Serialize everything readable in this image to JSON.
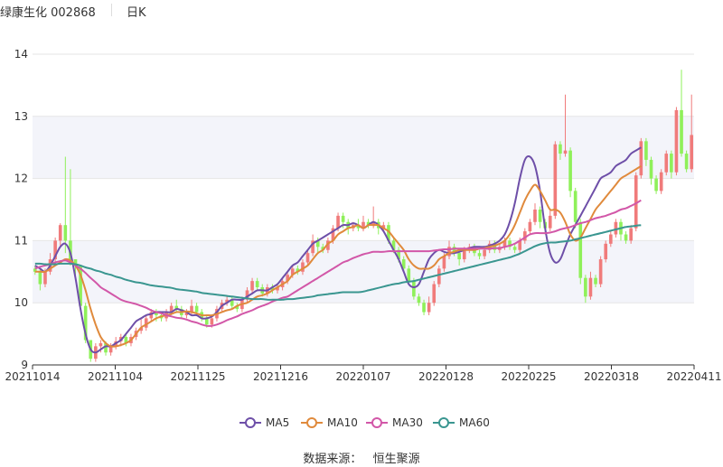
{
  "header": {
    "stock": "绿康生化 002868",
    "period": "日K"
  },
  "legend": [
    {
      "name": "MA5",
      "color": "#6e4fa8"
    },
    {
      "name": "MA10",
      "color": "#e08a3c"
    },
    {
      "name": "MA30",
      "color": "#d257a8"
    },
    {
      "name": "MA60",
      "color": "#3a9690"
    }
  ],
  "source": {
    "label": "数据来源：",
    "value": "恒生聚源"
  },
  "colors": {
    "up": "#f07b7b",
    "down": "#8ff05a",
    "band": "#f3f4fa",
    "grid": "#e6e6e6"
  },
  "chart_data": {
    "type": "candlestick",
    "x_tick_labels": [
      "20211014",
      "20211104",
      "20211125",
      "20211216",
      "20220107",
      "20220128",
      "20220225",
      "20220318",
      "20220411"
    ],
    "y_ticks": [
      9,
      10,
      11,
      12,
      13,
      14
    ],
    "ylim": [
      9,
      14
    ],
    "grid": true,
    "legend_position": "bottom",
    "candles": [
      [
        10.55,
        10.5,
        10.6,
        10.45
      ],
      [
        10.5,
        10.3,
        10.55,
        10.2
      ],
      [
        10.3,
        10.5,
        10.55,
        10.25
      ],
      [
        10.5,
        10.7,
        10.8,
        10.45
      ],
      [
        10.7,
        11.0,
        11.05,
        10.65
      ],
      [
        11.0,
        11.25,
        11.28,
        10.9
      ],
      [
        11.25,
        11.0,
        12.35,
        10.8
      ],
      [
        11.0,
        10.7,
        12.15,
        10.6
      ],
      [
        10.7,
        10.6,
        10.7,
        10.4
      ],
      [
        10.6,
        9.95,
        10.6,
        9.9
      ],
      [
        9.95,
        9.4,
        10.0,
        9.35
      ],
      [
        9.4,
        9.1,
        9.4,
        9.05
      ],
      [
        9.1,
        9.3,
        9.35,
        9.05
      ],
      [
        9.3,
        9.35,
        9.4,
        9.2
      ],
      [
        9.35,
        9.2,
        9.38,
        9.15
      ],
      [
        9.2,
        9.3,
        9.35,
        9.15
      ],
      [
        9.3,
        9.38,
        9.45,
        9.25
      ],
      [
        9.38,
        9.45,
        9.5,
        9.3
      ],
      [
        9.45,
        9.35,
        9.5,
        9.3
      ],
      [
        9.35,
        9.45,
        9.5,
        9.3
      ],
      [
        9.45,
        9.55,
        9.6,
        9.4
      ],
      [
        9.55,
        9.6,
        9.75,
        9.5
      ],
      [
        9.6,
        9.75,
        9.8,
        9.55
      ],
      [
        9.75,
        9.85,
        9.9,
        9.7
      ],
      [
        9.85,
        9.8,
        9.9,
        9.7
      ],
      [
        9.8,
        9.75,
        9.85,
        9.7
      ],
      [
        9.75,
        9.85,
        9.9,
        9.7
      ],
      [
        9.85,
        9.95,
        10.0,
        9.8
      ],
      [
        9.95,
        9.9,
        10.05,
        9.85
      ],
      [
        9.9,
        9.8,
        9.95,
        9.75
      ],
      [
        9.8,
        9.85,
        9.9,
        9.75
      ],
      [
        9.85,
        9.95,
        10.05,
        9.8
      ],
      [
        9.95,
        9.85,
        10.0,
        9.8
      ],
      [
        9.85,
        9.75,
        9.9,
        9.7
      ],
      [
        9.75,
        9.65,
        9.8,
        9.6
      ],
      [
        9.65,
        9.75,
        9.8,
        9.6
      ],
      [
        9.75,
        9.9,
        9.95,
        9.7
      ],
      [
        9.9,
        10.0,
        10.05,
        9.85
      ],
      [
        10.0,
        10.05,
        10.1,
        9.95
      ],
      [
        10.05,
        9.95,
        10.1,
        9.9
      ],
      [
        9.95,
        9.9,
        10.0,
        9.85
      ],
      [
        9.9,
        10.05,
        10.1,
        9.85
      ],
      [
        10.05,
        10.2,
        10.25,
        10.0
      ],
      [
        10.2,
        10.35,
        10.4,
        10.15
      ],
      [
        10.35,
        10.25,
        10.4,
        10.2
      ],
      [
        10.25,
        10.15,
        10.3,
        10.1
      ],
      [
        10.15,
        10.25,
        10.3,
        10.1
      ],
      [
        10.25,
        10.2,
        10.3,
        10.15
      ],
      [
        10.2,
        10.25,
        10.3,
        10.15
      ],
      [
        10.25,
        10.35,
        10.4,
        10.2
      ],
      [
        10.35,
        10.45,
        10.5,
        10.3
      ],
      [
        10.45,
        10.55,
        10.6,
        10.4
      ],
      [
        10.55,
        10.5,
        10.6,
        10.45
      ],
      [
        10.5,
        10.65,
        10.7,
        10.45
      ],
      [
        10.65,
        10.8,
        10.85,
        10.6
      ],
      [
        10.8,
        11.0,
        11.1,
        10.75
      ],
      [
        11.0,
        10.9,
        11.05,
        10.8
      ],
      [
        10.9,
        10.85,
        10.95,
        10.8
      ],
      [
        10.85,
        11.0,
        11.05,
        10.8
      ],
      [
        11.0,
        11.2,
        11.25,
        10.95
      ],
      [
        11.2,
        11.4,
        11.45,
        11.15
      ],
      [
        11.4,
        11.3,
        11.45,
        11.2
      ],
      [
        11.3,
        11.2,
        11.35,
        11.1
      ],
      [
        11.2,
        11.25,
        11.3,
        11.15
      ],
      [
        11.25,
        11.2,
        11.35,
        11.15
      ],
      [
        11.2,
        11.3,
        11.4,
        11.15
      ],
      [
        11.3,
        11.25,
        11.35,
        11.2
      ],
      [
        11.25,
        11.3,
        11.55,
        11.2
      ],
      [
        11.3,
        11.2,
        11.35,
        11.1
      ],
      [
        11.2,
        11.25,
        11.3,
        11.15
      ],
      [
        11.25,
        11.0,
        11.3,
        10.95
      ],
      [
        11.0,
        10.85,
        11.05,
        10.8
      ],
      [
        10.85,
        10.7,
        10.9,
        10.65
      ],
      [
        10.7,
        10.55,
        10.75,
        10.5
      ],
      [
        10.55,
        10.35,
        10.6,
        10.3
      ],
      [
        10.35,
        10.1,
        10.4,
        10.05
      ],
      [
        10.1,
        10.0,
        10.15,
        9.95
      ],
      [
        10.0,
        9.85,
        10.05,
        9.8
      ],
      [
        9.85,
        10.0,
        10.1,
        9.8
      ],
      [
        10.0,
        10.3,
        10.35,
        9.95
      ],
      [
        10.3,
        10.55,
        10.6,
        10.25
      ],
      [
        10.55,
        10.75,
        10.8,
        10.5
      ],
      [
        10.75,
        10.9,
        11.0,
        10.7
      ],
      [
        10.9,
        10.8,
        10.95,
        10.75
      ],
      [
        10.8,
        10.7,
        10.85,
        10.6
      ],
      [
        10.7,
        10.85,
        10.9,
        10.65
      ],
      [
        10.85,
        10.9,
        10.95,
        10.8
      ],
      [
        10.9,
        10.8,
        10.95,
        10.75
      ],
      [
        10.8,
        10.75,
        10.85,
        10.7
      ],
      [
        10.75,
        10.85,
        10.9,
        10.7
      ],
      [
        10.85,
        10.95,
        11.0,
        10.8
      ],
      [
        10.95,
        10.85,
        11.0,
        10.8
      ],
      [
        10.85,
        10.9,
        10.95,
        10.8
      ],
      [
        10.9,
        11.0,
        11.05,
        10.85
      ],
      [
        11.0,
        10.9,
        11.05,
        10.85
      ],
      [
        10.9,
        10.85,
        10.95,
        10.8
      ],
      [
        10.85,
        11.0,
        11.05,
        10.8
      ],
      [
        11.0,
        11.15,
        11.2,
        10.95
      ],
      [
        11.15,
        11.3,
        11.35,
        11.1
      ],
      [
        11.3,
        11.5,
        11.6,
        11.25
      ],
      [
        11.5,
        11.3,
        11.55,
        11.2
      ],
      [
        11.3,
        11.2,
        11.35,
        11.1
      ],
      [
        11.2,
        11.4,
        11.5,
        11.15
      ],
      [
        11.4,
        12.55,
        12.6,
        11.35
      ],
      [
        12.55,
        12.4,
        12.6,
        12.3
      ],
      [
        12.4,
        12.45,
        13.35,
        12.35
      ],
      [
        12.45,
        11.8,
        12.5,
        11.7
      ],
      [
        11.8,
        11.3,
        11.85,
        11.2
      ],
      [
        11.3,
        10.4,
        11.35,
        10.3
      ],
      [
        10.4,
        10.1,
        10.45,
        10.0
      ],
      [
        10.1,
        10.4,
        10.5,
        10.05
      ],
      [
        10.4,
        10.3,
        10.45,
        10.25
      ],
      [
        10.3,
        10.7,
        10.75,
        10.25
      ],
      [
        10.7,
        10.95,
        11.0,
        10.65
      ],
      [
        10.95,
        11.1,
        11.15,
        10.9
      ],
      [
        11.1,
        11.3,
        11.35,
        11.05
      ],
      [
        11.3,
        11.1,
        11.35,
        11.0
      ],
      [
        11.1,
        11.0,
        11.15,
        10.95
      ],
      [
        11.0,
        11.2,
        11.25,
        10.95
      ],
      [
        11.2,
        12.05,
        12.1,
        11.15
      ],
      [
        12.05,
        12.6,
        12.65,
        12.0
      ],
      [
        12.6,
        12.3,
        12.65,
        12.2
      ],
      [
        12.3,
        12.0,
        12.35,
        11.9
      ],
      [
        12.0,
        11.8,
        12.05,
        11.75
      ],
      [
        11.8,
        12.1,
        12.15,
        11.75
      ],
      [
        12.1,
        12.4,
        12.45,
        12.05
      ],
      [
        12.4,
        12.1,
        12.45,
        12.0
      ],
      [
        12.1,
        13.1,
        13.15,
        12.05
      ],
      [
        13.1,
        12.4,
        13.75,
        12.35
      ],
      [
        12.4,
        12.15,
        12.45,
        12.1
      ],
      [
        12.15,
        12.7,
        13.35,
        12.1
      ]
    ],
    "series": [
      {
        "name": "MA5",
        "values": [
          10.6,
          10.55,
          10.5,
          10.6,
          10.75,
          10.9,
          10.95,
          10.8,
          10.4,
          9.9,
          9.5,
          9.25,
          9.2,
          9.25,
          9.3,
          9.3,
          9.35,
          9.4,
          9.5,
          9.6,
          9.7,
          9.75,
          9.8,
          9.82,
          9.85,
          9.85,
          9.85,
          9.85,
          9.9,
          9.88,
          9.85,
          9.8,
          9.8,
          9.75,
          9.75,
          9.78,
          9.85,
          9.95,
          10.0,
          10.05,
          10.05,
          10.05,
          10.1,
          10.15,
          10.2,
          10.2,
          10.2,
          10.25,
          10.3,
          10.4,
          10.5,
          10.6,
          10.65,
          10.75,
          10.85,
          10.95,
          11.0,
          11.05,
          11.1,
          11.15,
          11.2,
          11.25,
          11.25,
          11.28,
          11.25,
          11.2,
          11.25,
          11.3,
          11.25,
          11.15,
          11.0,
          10.85,
          10.7,
          10.5,
          10.3,
          10.25,
          10.3,
          10.5,
          10.7,
          10.8,
          10.85,
          10.82,
          10.8,
          10.8,
          10.82,
          10.85,
          10.88,
          10.9,
          10.9,
          10.9,
          10.92,
          10.95,
          11.0,
          11.1,
          11.3,
          11.6,
          12.0,
          12.3,
          12.35,
          12.2,
          11.8,
          11.2,
          10.8,
          10.65,
          10.7,
          10.9,
          11.1,
          11.25,
          11.4,
          11.55,
          11.7,
          11.85,
          12.0,
          12.05,
          12.1,
          12.2,
          12.25,
          12.3,
          12.4,
          12.45,
          12.5
        ]
      },
      {
        "name": "MA10",
        "values": [
          10.5,
          10.5,
          10.5,
          10.55,
          10.6,
          10.65,
          10.7,
          10.68,
          10.6,
          10.45,
          10.2,
          9.9,
          9.65,
          9.45,
          9.35,
          9.3,
          9.3,
          9.32,
          9.35,
          9.4,
          9.5,
          9.6,
          9.65,
          9.7,
          9.75,
          9.78,
          9.8,
          9.82,
          9.85,
          9.85,
          9.86,
          9.85,
          9.83,
          9.8,
          9.8,
          9.8,
          9.82,
          9.85,
          9.88,
          9.9,
          9.95,
          9.98,
          10.0,
          10.05,
          10.1,
          10.12,
          10.15,
          10.2,
          10.25,
          10.3,
          10.35,
          10.45,
          10.5,
          10.55,
          10.6,
          10.7,
          10.8,
          10.85,
          10.95,
          11.0,
          11.1,
          11.15,
          11.2,
          11.22,
          11.25,
          11.2,
          11.25,
          11.25,
          11.25,
          11.2,
          11.15,
          11.05,
          10.95,
          10.85,
          10.7,
          10.6,
          10.55,
          10.55,
          10.55,
          10.6,
          10.7,
          10.75,
          10.8,
          10.82,
          10.85,
          10.85,
          10.85,
          10.85,
          10.87,
          10.88,
          10.9,
          10.92,
          10.95,
          11.0,
          11.1,
          11.25,
          11.45,
          11.65,
          11.8,
          11.9,
          11.8,
          11.65,
          11.5,
          11.5,
          11.45,
          11.3,
          11.1,
          11.0,
          11.05,
          11.2,
          11.35,
          11.5,
          11.6,
          11.7,
          11.8,
          11.9,
          12.0,
          12.05,
          12.1,
          12.15,
          12.2
        ]
      },
      {
        "name": "MA30",
        "values": [
          10.55,
          10.58,
          10.6,
          10.62,
          10.65,
          10.67,
          10.68,
          10.65,
          10.6,
          10.55,
          10.48,
          10.4,
          10.33,
          10.25,
          10.2,
          10.15,
          10.1,
          10.05,
          10.02,
          10.0,
          9.98,
          9.95,
          9.92,
          9.88,
          9.85,
          9.83,
          9.8,
          9.78,
          9.76,
          9.75,
          9.73,
          9.7,
          9.68,
          9.65,
          9.63,
          9.63,
          9.65,
          9.68,
          9.72,
          9.75,
          9.78,
          9.82,
          9.85,
          9.88,
          9.92,
          9.95,
          9.98,
          10.02,
          10.05,
          10.08,
          10.1,
          10.15,
          10.2,
          10.25,
          10.3,
          10.35,
          10.4,
          10.45,
          10.5,
          10.55,
          10.6,
          10.65,
          10.68,
          10.72,
          10.75,
          10.78,
          10.8,
          10.82,
          10.82,
          10.82,
          10.83,
          10.83,
          10.83,
          10.83,
          10.83,
          10.83,
          10.83,
          10.83,
          10.83,
          10.84,
          10.85,
          10.86,
          10.86,
          10.87,
          10.87,
          10.87,
          10.87,
          10.87,
          10.87,
          10.87,
          10.87,
          10.88,
          10.88,
          10.9,
          10.92,
          10.95,
          11.0,
          11.05,
          11.1,
          11.12,
          11.12,
          11.12,
          11.13,
          11.15,
          11.18,
          11.2,
          11.22,
          11.25,
          11.28,
          11.3,
          11.33,
          11.36,
          11.38,
          11.4,
          11.43,
          11.46,
          11.5,
          11.52,
          11.56,
          11.6,
          11.65
        ]
      },
      {
        "name": "MA60",
        "values": [
          10.63,
          10.63,
          10.62,
          10.62,
          10.62,
          10.63,
          10.63,
          10.63,
          10.62,
          10.6,
          10.57,
          10.55,
          10.52,
          10.5,
          10.47,
          10.45,
          10.42,
          10.4,
          10.37,
          10.35,
          10.33,
          10.32,
          10.3,
          10.28,
          10.27,
          10.26,
          10.25,
          10.24,
          10.22,
          10.21,
          10.2,
          10.19,
          10.18,
          10.16,
          10.15,
          10.14,
          10.13,
          10.12,
          10.11,
          10.1,
          10.09,
          10.08,
          10.07,
          10.06,
          10.06,
          10.06,
          10.05,
          10.05,
          10.05,
          10.05,
          10.06,
          10.06,
          10.07,
          10.08,
          10.09,
          10.1,
          10.12,
          10.13,
          10.14,
          10.15,
          10.16,
          10.17,
          10.17,
          10.17,
          10.17,
          10.18,
          10.2,
          10.22,
          10.24,
          10.26,
          10.28,
          10.3,
          10.31,
          10.33,
          10.34,
          10.35,
          10.37,
          10.39,
          10.41,
          10.43,
          10.45,
          10.47,
          10.49,
          10.51,
          10.53,
          10.55,
          10.57,
          10.59,
          10.61,
          10.63,
          10.65,
          10.67,
          10.69,
          10.71,
          10.73,
          10.76,
          10.79,
          10.83,
          10.87,
          10.91,
          10.94,
          10.96,
          10.97,
          10.97,
          10.98,
          10.99,
          11.0,
          11.02,
          11.04,
          11.06,
          11.08,
          11.1,
          11.12,
          11.14,
          11.16,
          11.18,
          11.2,
          11.22,
          11.23,
          11.24,
          11.25
        ]
      }
    ]
  }
}
